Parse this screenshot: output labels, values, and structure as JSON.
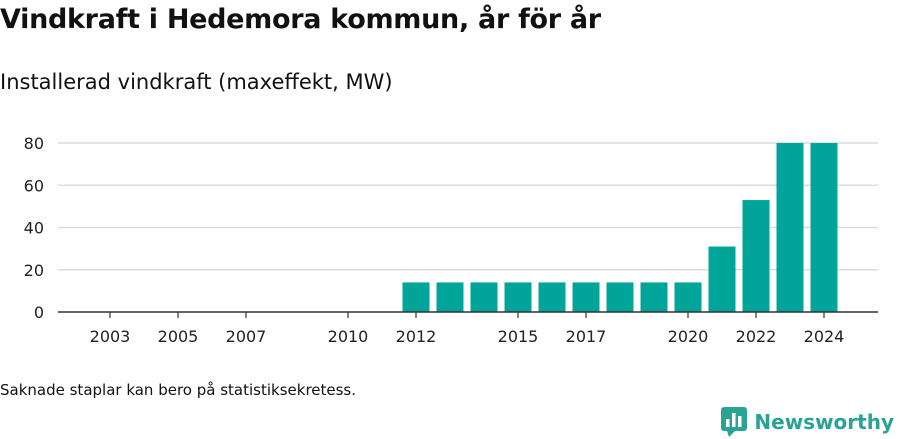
{
  "title": "Vindkraft i Hedemora kommun, år för år",
  "subtitle": "Installerad vindkraft (maxeffekt, MW)",
  "note": "Saknade staplar kan bero på statistiksekretess.",
  "brand": {
    "name": "Newsworthy",
    "icon": "newsworthy-logo-icon",
    "color": "#2aa395"
  },
  "chart_data": {
    "type": "bar",
    "title": "Vindkraft i Hedemora kommun, år för år",
    "subtitle": "Installerad vindkraft (maxeffekt, MW)",
    "xlabel": "",
    "ylabel": "",
    "categories": [
      2002,
      2003,
      2004,
      2005,
      2006,
      2007,
      2008,
      2009,
      2010,
      2011,
      2012,
      2013,
      2014,
      2015,
      2016,
      2017,
      2018,
      2019,
      2020,
      2021,
      2022,
      2023,
      2024
    ],
    "values": [
      null,
      null,
      null,
      null,
      null,
      null,
      null,
      null,
      null,
      null,
      14,
      14,
      14,
      14,
      14,
      14,
      14,
      14,
      14,
      31,
      53,
      80,
      80
    ],
    "x_tick_labels": [
      "2003",
      "2005",
      "2007",
      "2010",
      "2012",
      "2015",
      "2017",
      "2020",
      "2022",
      "2024"
    ],
    "y_ticks": [
      0,
      20,
      40,
      60,
      80
    ],
    "ylim": [
      0,
      80
    ],
    "grid": true,
    "legend": "none",
    "bar_color": "#00a499"
  }
}
